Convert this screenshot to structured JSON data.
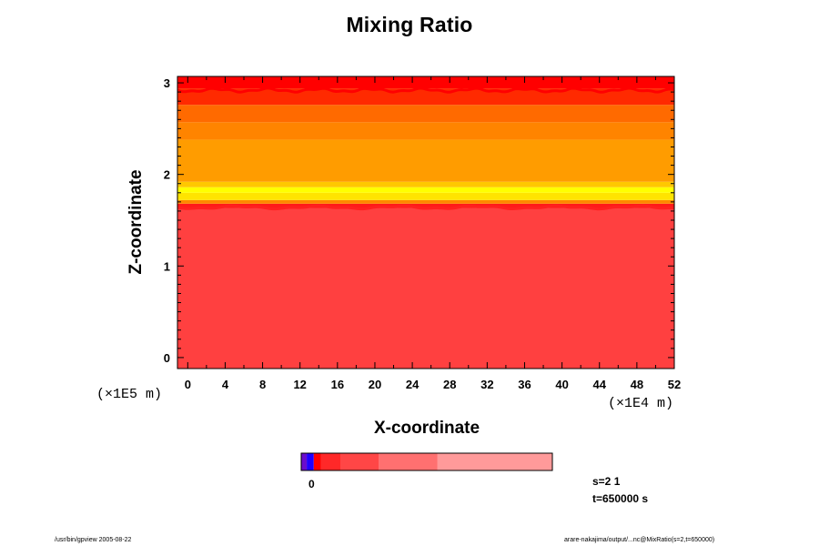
{
  "chart_data": {
    "type": "heatmap",
    "title": "Mixing Ratio",
    "xlabel": "X-coordinate",
    "ylabel": "Z-coordinate",
    "x_scale_label": "(×1E4 m)",
    "y_scale_label": "(×1E5 m)",
    "xlim": [
      -1.1,
      52
    ],
    "ylim": [
      -0.12,
      3.07
    ],
    "x_ticks": [
      0,
      4,
      8,
      12,
      16,
      20,
      24,
      28,
      32,
      36,
      40,
      44,
      48,
      52
    ],
    "y_ticks": [
      0,
      1,
      2,
      3
    ],
    "bands": [
      {
        "z0": -0.12,
        "z1": 1.63,
        "color": "#ff4040"
      },
      {
        "z0": 1.63,
        "z1": 1.68,
        "color": "#ff1a1a"
      },
      {
        "z0": 1.68,
        "z1": 1.72,
        "color": "#ff8800"
      },
      {
        "z0": 1.72,
        "z1": 1.8,
        "color": "#ffe400"
      },
      {
        "z0": 1.8,
        "z1": 1.86,
        "color": "#ffff00"
      },
      {
        "z0": 1.86,
        "z1": 1.92,
        "color": "#ffc800"
      },
      {
        "z0": 1.92,
        "z1": 2.38,
        "color": "#ff9c00"
      },
      {
        "z0": 2.38,
        "z1": 2.57,
        "color": "#ff8400"
      },
      {
        "z0": 2.57,
        "z1": 2.76,
        "color": "#ff6a00"
      },
      {
        "z0": 2.76,
        "z1": 2.94,
        "color": "#ff2a00"
      },
      {
        "z0": 2.94,
        "z1": 3.07,
        "color": "#ff0000"
      }
    ],
    "colorbar": {
      "label": "0",
      "segments": [
        {
          "frac": 0.022,
          "color": "#6a0dcc"
        },
        {
          "frac": 0.028,
          "color": "#2000ff"
        },
        {
          "frac": 0.028,
          "color": "#ff0000"
        },
        {
          "frac": 0.08,
          "color": "#ff2828"
        },
        {
          "frac": 0.15,
          "color": "#ff4646"
        },
        {
          "frac": 0.235,
          "color": "#ff7070"
        },
        {
          "frac": 0.457,
          "color": "#ff9a9a"
        }
      ]
    }
  },
  "info": {
    "s_label": "s=2 1",
    "t_label": "t=650000 s"
  },
  "footer": {
    "left": "/usr/bin/gpview 2005-08-22",
    "right": "arare-nakajima/output/...nc@MixRatio(s=2,t=650000)"
  }
}
